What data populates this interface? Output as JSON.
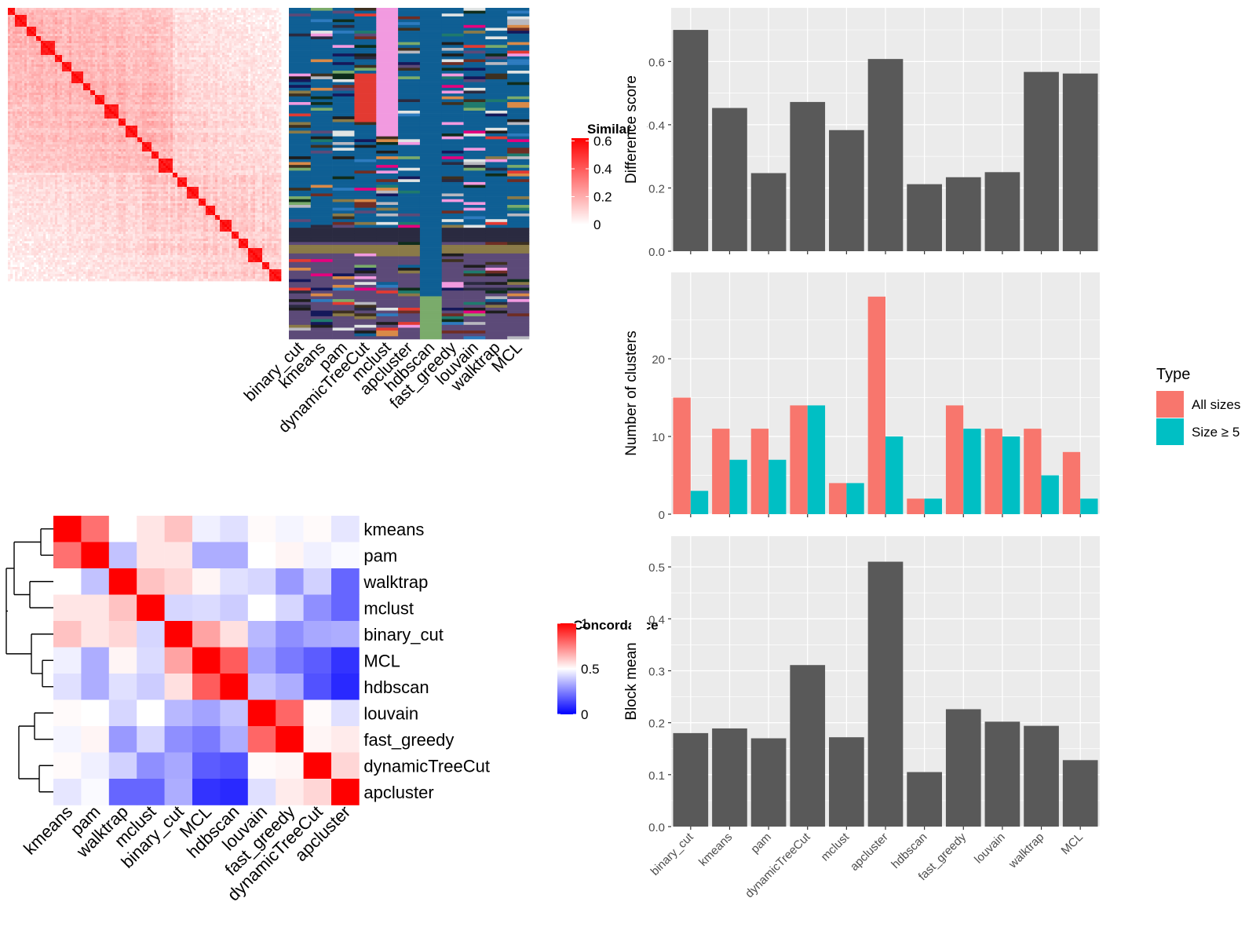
{
  "methods_order_bar": [
    "binary_cut",
    "kmeans",
    "pam",
    "dynamicTreeCut",
    "mclust",
    "apcluster",
    "hdbscan",
    "fast_greedy",
    "louvain",
    "walktrap",
    "MCL"
  ],
  "colors": {
    "bar_gray": "#595959",
    "panel_bg": "#ebebeb",
    "grid": "#ffffff",
    "all_sizes": "#f8766d",
    "size_ge_5": "#00bfc4",
    "sim_high": "#ff0000",
    "sim_low": "#ffffff",
    "conc_high": "#ff0000",
    "conc_mid": "#ffffff",
    "conc_low": "#0000ff"
  },
  "similarity_heatmap": {
    "legend_title": "Similarity",
    "legend_ticks": [
      "0.6",
      "0.4",
      "0.2",
      "0"
    ]
  },
  "cluster_annotation": {
    "columns": [
      "binary_cut",
      "kmeans",
      "pam",
      "dynamicTreeCut",
      "mclust",
      "apcluster",
      "hdbscan",
      "fast_greedy",
      "louvain",
      "walktrap",
      "MCL"
    ]
  },
  "concordance_heatmap": {
    "legend_title": "Concordance",
    "legend_ticks": [
      "1",
      "0.5",
      "0"
    ],
    "methods": [
      "kmeans",
      "pam",
      "walktrap",
      "mclust",
      "binary_cut",
      "MCL",
      "hdbscan",
      "louvain",
      "fast_greedy",
      "dynamicTreeCut",
      "apcluster"
    ]
  },
  "chart_data": [
    {
      "type": "bar",
      "ylabel": "Difference score",
      "categories": [
        "binary_cut",
        "kmeans",
        "pam",
        "dynamicTreeCut",
        "mclust",
        "apcluster",
        "hdbscan",
        "fast_greedy",
        "louvain",
        "walktrap",
        "MCL"
      ],
      "values": [
        0.7,
        0.453,
        0.247,
        0.472,
        0.383,
        0.608,
        0.212,
        0.234,
        0.25,
        0.567,
        0.562
      ],
      "ylim": [
        0,
        0.73
      ],
      "yticks": [
        0.0,
        0.2,
        0.4,
        0.6
      ],
      "ytick_labels": [
        "0.0",
        "0.2",
        "0.4",
        "0.6"
      ],
      "grid": true
    },
    {
      "type": "bar",
      "ylabel": "Number of clusters",
      "categories": [
        "binary_cut",
        "kmeans",
        "pam",
        "dynamicTreeCut",
        "mclust",
        "apcluster",
        "hdbscan",
        "fast_greedy",
        "louvain",
        "walktrap",
        "MCL"
      ],
      "series": [
        {
          "name": "All sizes",
          "values": [
            15,
            11,
            11,
            14,
            4,
            28,
            2,
            14,
            11,
            11,
            8
          ]
        },
        {
          "name": "Size ≥ 5",
          "values": [
            3,
            7,
            7,
            14,
            4,
            10,
            2,
            11,
            10,
            5,
            2
          ]
        }
      ],
      "legend_title": "Type",
      "legend_position": "right",
      "ylim": [
        0,
        29.5
      ],
      "yticks": [
        0,
        10,
        20
      ],
      "ytick_labels": [
        "0",
        "10",
        "20"
      ],
      "grid": true
    },
    {
      "type": "bar",
      "ylabel": "Block mean",
      "categories": [
        "binary_cut",
        "kmeans",
        "pam",
        "dynamicTreeCut",
        "mclust",
        "apcluster",
        "hdbscan",
        "fast_greedy",
        "louvain",
        "walktrap",
        "MCL"
      ],
      "values": [
        0.18,
        0.189,
        0.17,
        0.311,
        0.172,
        0.51,
        0.105,
        0.226,
        0.202,
        0.194,
        0.128
      ],
      "ylim": [
        0,
        0.535
      ],
      "yticks": [
        0.0,
        0.1,
        0.2,
        0.3,
        0.4,
        0.5
      ],
      "ytick_labels": [
        "0.0",
        "0.1",
        "0.2",
        "0.3",
        "0.4",
        "0.5"
      ],
      "grid": true
    }
  ]
}
